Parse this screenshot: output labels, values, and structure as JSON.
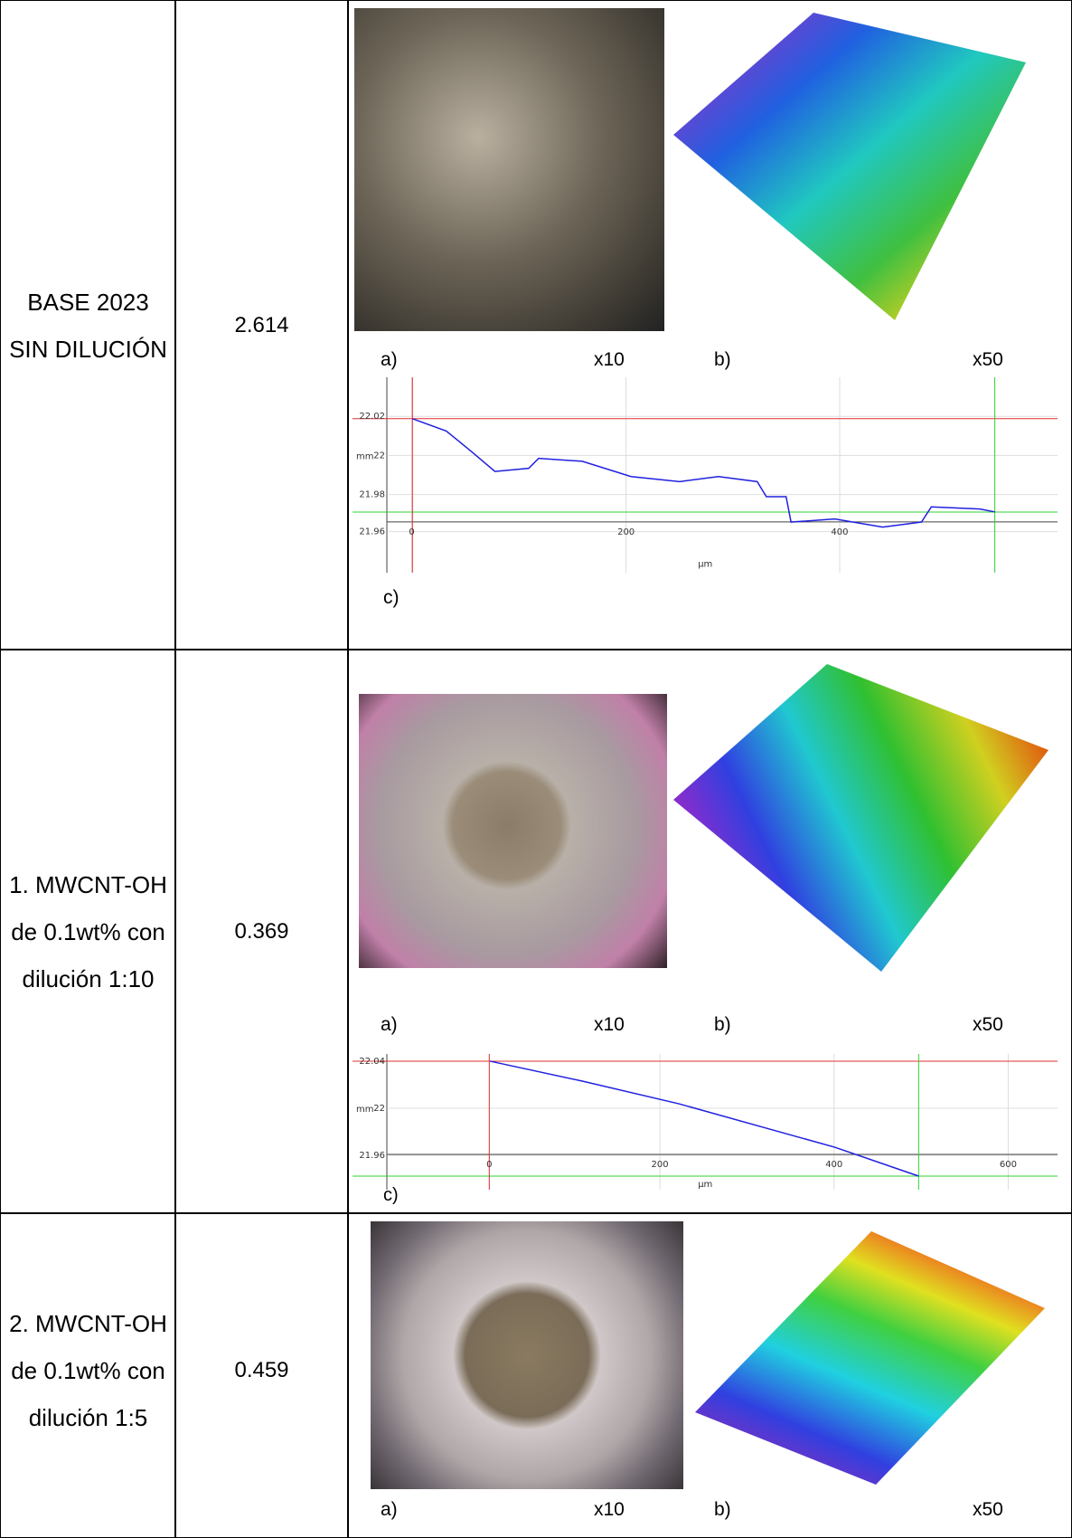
{
  "table": {
    "rows": [
      {
        "sample": "BASE 2023 SIN DILUCIÓN",
        "value": "2.614",
        "labels": {
          "a": "a)",
          "a_mag": "x10",
          "b": "b)",
          "b_mag": "x50",
          "c": "c)"
        },
        "profile": {
          "yticks": [
            "22.02",
            "22",
            "21.98",
            "21.96"
          ],
          "xticks": [
            "0",
            "200",
            "400"
          ],
          "yunit": "mm",
          "xunit": "µm"
        }
      },
      {
        "sample": "1. MWCNT-OH de 0.1wt% con dilución 1:10",
        "value": "0.369",
        "labels": {
          "a": "a)",
          "a_mag": "x10",
          "b": "b)",
          "b_mag": "x50",
          "c": "c)"
        },
        "profile": {
          "yticks": [
            "22.04",
            "22",
            "21.96"
          ],
          "xticks": [
            "0",
            "200",
            "400",
            "600"
          ],
          "yunit": "mm",
          "xunit": "µm"
        }
      },
      {
        "sample": "2. MWCNT-OH de 0.1wt% con dilución 1:5",
        "value": "0.459",
        "labels": {
          "a": "a)",
          "a_mag": "x10",
          "b": "b)",
          "b_mag": "x50"
        }
      }
    ]
  }
}
